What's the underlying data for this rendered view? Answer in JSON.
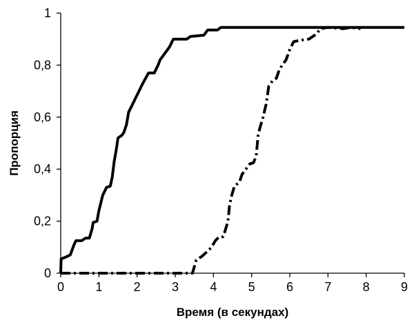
{
  "chart_data": {
    "type": "line",
    "title": "",
    "xlabel": "Время (в секундах)",
    "ylabel": "Пропорция",
    "xlim": [
      0,
      9
    ],
    "ylim": [
      0,
      1
    ],
    "x_ticks": [
      0,
      1,
      2,
      3,
      4,
      5,
      6,
      7,
      8,
      9
    ],
    "x_tick_labels": [
      "0",
      "1",
      "2",
      "3",
      "4",
      "5",
      "6",
      "7",
      "8",
      "9"
    ],
    "y_ticks": [
      0,
      0.2,
      0.4,
      0.6,
      0.8,
      1
    ],
    "y_tick_labels": [
      "0",
      "0,2",
      "0,4",
      "0,6",
      "0,8",
      "1"
    ],
    "grid": false,
    "legend": "none",
    "series": [
      {
        "style": "solid",
        "color": "#000000",
        "points": [
          [
            0.0,
            0.0
          ],
          [
            0.01,
            0.055
          ],
          [
            0.1,
            0.06
          ],
          [
            0.25,
            0.07
          ],
          [
            0.35,
            0.11
          ],
          [
            0.4,
            0.125
          ],
          [
            0.55,
            0.125
          ],
          [
            0.65,
            0.135
          ],
          [
            0.75,
            0.135
          ],
          [
            0.82,
            0.17
          ],
          [
            0.85,
            0.195
          ],
          [
            0.95,
            0.2
          ],
          [
            1.0,
            0.24
          ],
          [
            1.05,
            0.27
          ],
          [
            1.1,
            0.3
          ],
          [
            1.2,
            0.33
          ],
          [
            1.3,
            0.335
          ],
          [
            1.35,
            0.37
          ],
          [
            1.4,
            0.43
          ],
          [
            1.45,
            0.47
          ],
          [
            1.5,
            0.52
          ],
          [
            1.6,
            0.53
          ],
          [
            1.65,
            0.54
          ],
          [
            1.72,
            0.57
          ],
          [
            1.78,
            0.62
          ],
          [
            1.85,
            0.64
          ],
          [
            1.95,
            0.67
          ],
          [
            2.05,
            0.7
          ],
          [
            2.15,
            0.73
          ],
          [
            2.3,
            0.77
          ],
          [
            2.45,
            0.77
          ],
          [
            2.55,
            0.8
          ],
          [
            2.6,
            0.82
          ],
          [
            2.75,
            0.85
          ],
          [
            2.85,
            0.87
          ],
          [
            2.95,
            0.9
          ],
          [
            3.3,
            0.9
          ],
          [
            3.4,
            0.91
          ],
          [
            3.75,
            0.915
          ],
          [
            3.85,
            0.935
          ],
          [
            4.1,
            0.935
          ],
          [
            4.2,
            0.945
          ],
          [
            9.0,
            0.945
          ]
        ]
      },
      {
        "style": "dash-dot",
        "color": "#000000",
        "points": [
          [
            0.0,
            0.0
          ],
          [
            3.45,
            0.0
          ],
          [
            3.55,
            0.05
          ],
          [
            3.7,
            0.065
          ],
          [
            3.85,
            0.085
          ],
          [
            3.95,
            0.1
          ],
          [
            4.05,
            0.125
          ],
          [
            4.15,
            0.14
          ],
          [
            4.25,
            0.14
          ],
          [
            4.3,
            0.16
          ],
          [
            4.38,
            0.2
          ],
          [
            4.42,
            0.26
          ],
          [
            4.48,
            0.3
          ],
          [
            4.55,
            0.335
          ],
          [
            4.68,
            0.35
          ],
          [
            4.75,
            0.38
          ],
          [
            4.85,
            0.4
          ],
          [
            4.95,
            0.42
          ],
          [
            5.05,
            0.425
          ],
          [
            5.12,
            0.45
          ],
          [
            5.17,
            0.53
          ],
          [
            5.22,
            0.56
          ],
          [
            5.3,
            0.6
          ],
          [
            5.38,
            0.65
          ],
          [
            5.45,
            0.72
          ],
          [
            5.55,
            0.74
          ],
          [
            5.65,
            0.75
          ],
          [
            5.72,
            0.78
          ],
          [
            5.8,
            0.8
          ],
          [
            5.9,
            0.82
          ],
          [
            6.0,
            0.86
          ],
          [
            6.1,
            0.89
          ],
          [
            6.25,
            0.895
          ],
          [
            6.5,
            0.9
          ],
          [
            6.7,
            0.92
          ],
          [
            6.8,
            0.94
          ],
          [
            7.0,
            0.945
          ],
          [
            7.4,
            0.94
          ],
          [
            7.6,
            0.945
          ],
          [
            7.85,
            0.94
          ]
        ]
      }
    ]
  }
}
